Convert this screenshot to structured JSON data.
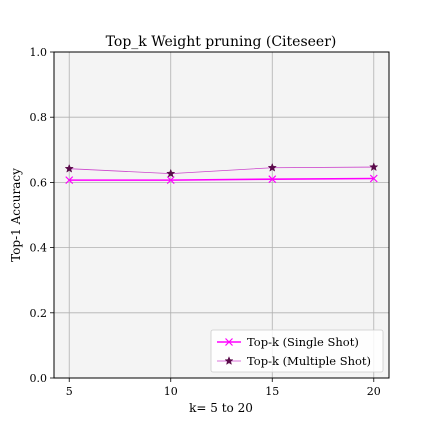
{
  "chart_data": {
    "type": "line",
    "title": "Top_k Weight pruning (Citeseer)",
    "xlabel": "k= 5 to 20",
    "ylabel": "Top-1 Accuracy",
    "x": [
      5,
      10,
      15,
      20
    ],
    "xlim": [
      4.25,
      20.75
    ],
    "ylim": [
      0.0,
      1.0
    ],
    "xticks": [
      5,
      10,
      15,
      20
    ],
    "yticks": [
      0.0,
      0.2,
      0.4,
      0.6,
      0.8,
      1.0
    ],
    "ytick_labels": [
      "0.0",
      "0.2",
      "0.4",
      "0.6",
      "0.8",
      "1.0"
    ],
    "grid": true,
    "legend_position": "lower-right",
    "background_color": "#f4f4f4",
    "series": [
      {
        "name": "Top-k (Single Shot)",
        "values": [
          0.607,
          0.607,
          0.61,
          0.612
        ],
        "color": "#ff00ff",
        "marker": "x",
        "line_width": "thick"
      },
      {
        "name": "Top-k (Multiple Shot)",
        "values": [
          0.642,
          0.627,
          0.645,
          0.647
        ],
        "color": "#cc44cc",
        "marker_color": "#5a0a4a",
        "marker": "star",
        "line_width": "thin"
      }
    ]
  }
}
